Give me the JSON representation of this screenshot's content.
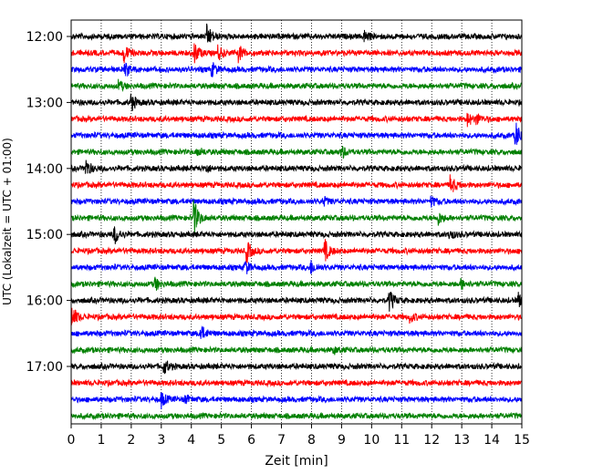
{
  "chart_data": {
    "type": "line",
    "title": "",
    "xlabel": "Zeit  [min]",
    "ylabel": "UTC (Lokalzeit = UTC + 01:00)",
    "xlim": [
      0,
      15
    ],
    "x_ticks": [
      "0",
      "1",
      "2",
      "3",
      "4",
      "5",
      "6",
      "7",
      "8",
      "9",
      "10",
      "11",
      "12",
      "13",
      "14",
      "15"
    ],
    "y_ticks": [
      "12:00",
      "13:00",
      "14:00",
      "15:00",
      "16:00",
      "17:00"
    ],
    "vertical_grid": "dotted, every 1 min",
    "line_colors": [
      "#000000",
      "#ff0000",
      "#0000ff",
      "#008000"
    ],
    "traces": [
      {
        "start": "12:00",
        "color": "#000000",
        "events": [
          [
            4.55,
            2.2
          ],
          [
            9.75,
            1.2
          ]
        ]
      },
      {
        "start": "12:15",
        "color": "#ff0000",
        "events": [
          [
            1.75,
            2.0
          ],
          [
            4.1,
            2.3
          ],
          [
            4.9,
            1.4
          ],
          [
            5.6,
            1.6
          ]
        ]
      },
      {
        "start": "12:30",
        "color": "#0000ff",
        "events": [
          [
            1.8,
            1.5
          ],
          [
            4.7,
            1.3
          ]
        ]
      },
      {
        "start": "12:45",
        "color": "#008000",
        "events": [
          [
            1.6,
            1.0
          ]
        ]
      },
      {
        "start": "13:00",
        "color": "#000000",
        "events": [
          [
            2.0,
            1.7
          ]
        ]
      },
      {
        "start": "13:15",
        "color": "#ff0000",
        "events": [
          [
            13.2,
            1.3
          ],
          [
            13.5,
            1.0
          ]
        ]
      },
      {
        "start": "13:30",
        "color": "#0000ff",
        "events": [
          [
            14.8,
            2.8
          ]
        ]
      },
      {
        "start": "13:45",
        "color": "#008000",
        "events": [
          [
            4.2,
            0.8
          ],
          [
            9.0,
            1.4
          ]
        ]
      },
      {
        "start": "14:00",
        "color": "#000000",
        "events": [
          [
            0.5,
            1.8
          ],
          [
            4.5,
            0.7
          ]
        ]
      },
      {
        "start": "14:15",
        "color": "#ff0000",
        "events": [
          [
            12.65,
            1.8
          ]
        ]
      },
      {
        "start": "14:30",
        "color": "#0000ff",
        "events": [
          [
            8.4,
            0.9
          ],
          [
            12.0,
            0.9
          ]
        ]
      },
      {
        "start": "14:45",
        "color": "#008000",
        "events": [
          [
            4.1,
            3.6
          ],
          [
            12.2,
            1.5
          ]
        ]
      },
      {
        "start": "15:00",
        "color": "#000000",
        "events": [
          [
            1.45,
            2.1
          ],
          [
            12.6,
            1.0
          ]
        ]
      },
      {
        "start": "15:15",
        "color": "#ff0000",
        "events": [
          [
            5.85,
            2.2
          ],
          [
            8.45,
            2.2
          ]
        ]
      },
      {
        "start": "15:30",
        "color": "#0000ff",
        "events": [
          [
            5.8,
            1.4
          ],
          [
            8.0,
            1.3
          ]
        ]
      },
      {
        "start": "15:45",
        "color": "#008000",
        "events": [
          [
            2.8,
            1.3
          ],
          [
            13.0,
            1.0
          ]
        ]
      },
      {
        "start": "16:00",
        "color": "#000000",
        "events": [
          [
            10.6,
            2.2
          ],
          [
            14.9,
            1.4
          ]
        ]
      },
      {
        "start": "16:15",
        "color": "#ff0000",
        "events": [
          [
            0.05,
            2.2
          ],
          [
            11.3,
            0.9
          ]
        ]
      },
      {
        "start": "16:30",
        "color": "#0000ff",
        "events": [
          [
            4.3,
            1.8
          ]
        ]
      },
      {
        "start": "16:45",
        "color": "#008000",
        "events": [
          [
            8.75,
            0.6
          ]
        ]
      },
      {
        "start": "17:00",
        "color": "#000000",
        "events": [
          [
            3.1,
            1.5
          ]
        ]
      },
      {
        "start": "17:15",
        "color": "#ff0000",
        "events": []
      },
      {
        "start": "17:30",
        "color": "#0000ff",
        "events": [
          [
            3.0,
            1.7
          ],
          [
            3.8,
            0.8
          ]
        ]
      },
      {
        "start": "17:45",
        "color": "#008000",
        "events": []
      }
    ]
  }
}
